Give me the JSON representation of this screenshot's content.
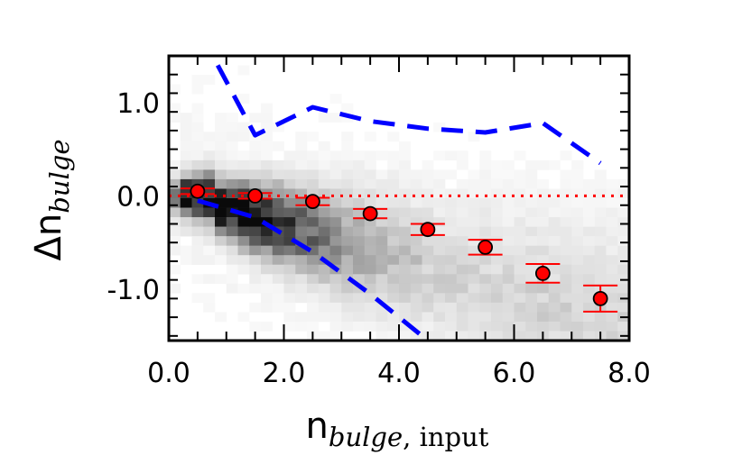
{
  "chart_data": {
    "type": "scatter",
    "title": "",
    "xlabel": {
      "main": "n",
      "subscript": "bulge",
      "subscript_suffix": ", input"
    },
    "ylabel": {
      "main": "Δn",
      "subscript": "bulge"
    },
    "xlim": [
      0.0,
      8.0
    ],
    "ylim": [
      -1.55,
      1.5
    ],
    "x_tick_labels": [
      "0.0",
      "2.0",
      "4.0",
      "6.0",
      "8.0"
    ],
    "y_tick_labels": [
      "1.0",
      "0.0",
      "-1.0"
    ],
    "x_ticks": [
      0,
      2,
      4,
      6,
      8
    ],
    "y_ticks": [
      1.0,
      0.0,
      -1.0
    ],
    "reference_line": {
      "y": 0.0,
      "style": "dotted",
      "color": "#ff0000"
    },
    "median_points": {
      "name": "",
      "color": "#ff0000",
      "edge_color": "#000000",
      "x": [
        0.5,
        1.5,
        2.5,
        3.5,
        4.5,
        5.5,
        6.5,
        7.5
      ],
      "y": [
        0.05,
        0.0,
        -0.06,
        -0.19,
        -0.36,
        -0.55,
        -0.83,
        -1.1
      ],
      "yerr": [
        0.03,
        0.03,
        0.04,
        0.05,
        0.06,
        0.08,
        0.1,
        0.14
      ]
    },
    "scatter_bounds": {
      "color": "#0000ff",
      "style": "dashed",
      "upper": {
        "x": [
          0.85,
          1.5,
          2.5,
          3.5,
          4.5,
          5.5,
          6.5,
          7.5
        ],
        "y": [
          1.4,
          0.65,
          0.95,
          0.8,
          0.72,
          0.68,
          0.78,
          0.35
        ]
      },
      "lower": {
        "x": [
          0.5,
          1.5,
          2.5,
          3.5,
          4.5
        ],
        "y": [
          -0.05,
          -0.23,
          -0.6,
          -1.05,
          -1.55
        ]
      }
    },
    "density_background": {
      "type": "heatmap",
      "colormap": "gray_r",
      "description_free": true
    },
    "grid": false,
    "legend": "none"
  }
}
